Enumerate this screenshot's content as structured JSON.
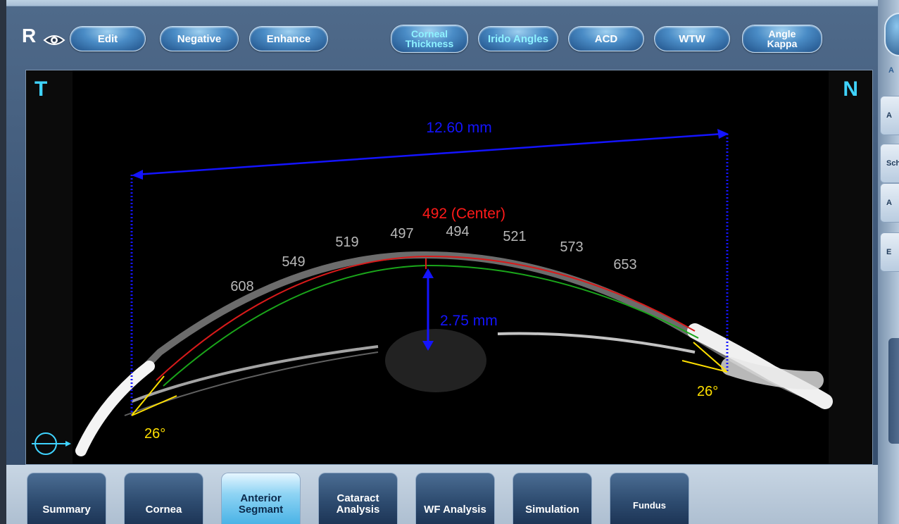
{
  "eye": {
    "side": "R"
  },
  "toolbar": {
    "edit": "Edit",
    "negative": "Negative",
    "enhance": "Enhance",
    "corneal_thickness": [
      "Corneal",
      "Thickness"
    ],
    "irido_angles": "Irido Angles",
    "acd": "ACD",
    "wtw": "WTW",
    "angle_kappa": [
      "Angle",
      "Kappa"
    ]
  },
  "image": {
    "temporal": "T",
    "nasal": "N",
    "wtw_measure": "12.60 mm",
    "acd_measure": "2.75 mm",
    "center_thickness": "492 (Center)",
    "thickness_values": [
      "608",
      "549",
      "519",
      "497",
      "494",
      "521",
      "573",
      "653"
    ],
    "angle_left": "26°",
    "angle_right": "26°"
  },
  "right_panel": {
    "top_label": "A",
    "tabs": [
      "A",
      "Sch",
      "A",
      "E"
    ]
  },
  "tabs": [
    {
      "label": [
        "Summary"
      ]
    },
    {
      "label": [
        "Cornea"
      ]
    },
    {
      "label": [
        "Anterior",
        "Segmant"
      ]
    },
    {
      "label": [
        "Cataract",
        "Analysis"
      ]
    },
    {
      "label": [
        "WF Analysis"
      ]
    },
    {
      "label": [
        "Simulation"
      ]
    },
    {
      "label": [
        "Fundus"
      ]
    }
  ],
  "colors": {
    "accent_cyan": "#3fd3ff",
    "measure_blue": "#1414ff",
    "center_red": "#ff1a1a",
    "angle_yellow": "#ffe000"
  }
}
